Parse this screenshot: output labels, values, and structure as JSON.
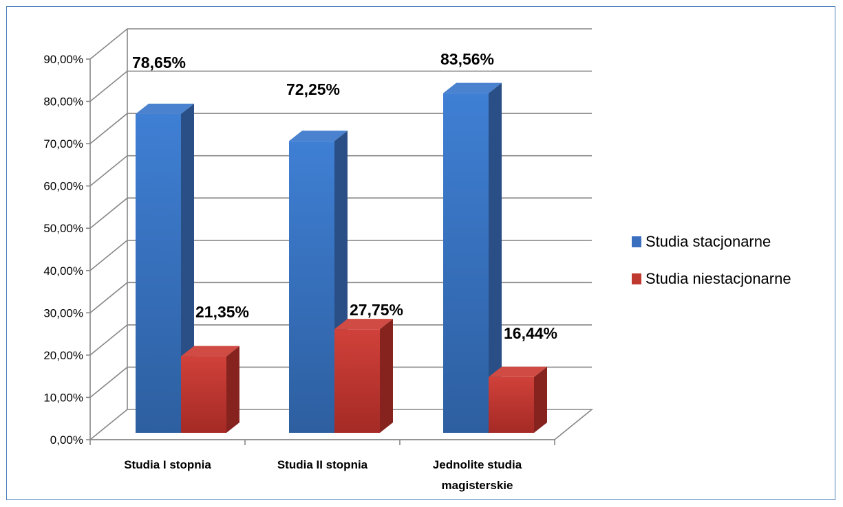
{
  "chart_data": {
    "type": "bar",
    "categories": [
      [
        "Studia I stopnia"
      ],
      [
        "Studia II stopnia"
      ],
      [
        "Jednolite studia",
        "magisterskie"
      ]
    ],
    "series": [
      {
        "name": "Studia stacjonarne",
        "values": [
          78.65,
          72.25,
          83.56
        ],
        "labels": [
          "78,65%",
          "72,25%",
          "83,56%"
        ],
        "color": "#3a6fbf"
      },
      {
        "name": "Studia niestacjonarne",
        "values": [
          21.35,
          27.75,
          16.44
        ],
        "labels": [
          "21,35%",
          "27,75%",
          "16,44%"
        ],
        "color": "#c0392f"
      }
    ],
    "yticks": [
      "0,00%",
      "10,00%",
      "20,00%",
      "30,00%",
      "40,00%",
      "50,00%",
      "60,00%",
      "70,00%",
      "80,00%",
      "90,00%"
    ],
    "ylim": [
      0,
      90
    ],
    "grid": true,
    "style": "3d-column",
    "legend_position": "right"
  }
}
